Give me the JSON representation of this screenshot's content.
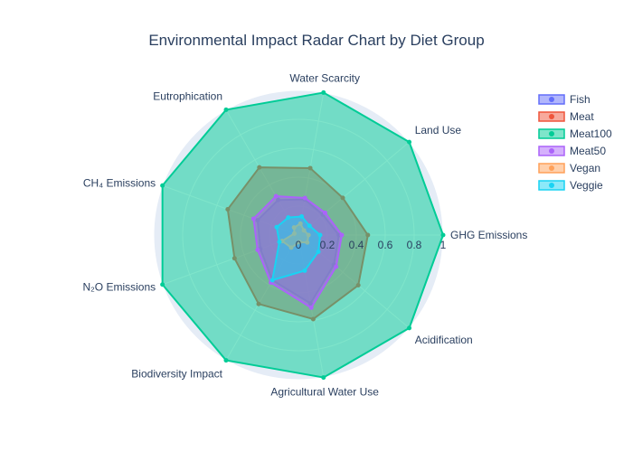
{
  "chart_data": {
    "type": "radar",
    "title": "Environmental Impact Radar Chart by Diet Group",
    "axes": [
      "GHG Emissions",
      "Land Use",
      "Water Scarcity",
      "Eutrophication",
      "CH₄ Emissions",
      "N₂O Emissions",
      "Biodiversity Impact",
      "Agricultural Water Use",
      "Acidification"
    ],
    "radial_range": [
      0,
      1
    ],
    "radial_ticks": [
      "0",
      "0.2",
      "0.4",
      "0.6",
      "0.8",
      "1"
    ],
    "grid": true,
    "legend_position": "top-right",
    "series": [
      {
        "name": "Fish",
        "color": "#636efa",
        "values": [
          0.28,
          0.22,
          0.25,
          0.28,
          0.3,
          0.28,
          0.36,
          0.48,
          0.32
        ]
      },
      {
        "name": "Meat",
        "color": "#ef553b",
        "values": [
          0.48,
          0.4,
          0.47,
          0.54,
          0.52,
          0.47,
          0.55,
          0.59,
          0.54
        ]
      },
      {
        "name": "Meat100",
        "color": "#00cc96",
        "values": [
          1,
          1,
          1,
          1,
          1,
          1,
          1,
          1,
          1
        ]
      },
      {
        "name": "Meat50",
        "color": "#ab63fa",
        "values": [
          0.3,
          0.24,
          0.26,
          0.31,
          0.33,
          0.3,
          0.38,
          0.51,
          0.34
        ]
      },
      {
        "name": "Vegan",
        "color": "#ffa15a",
        "values": [
          0.07,
          0.05,
          0.08,
          0.06,
          0.03,
          0.12,
          0.1,
          0.05,
          0.08
        ]
      },
      {
        "name": "Veggie",
        "color": "#19d3f3",
        "values": [
          0.15,
          0.1,
          0.13,
          0.14,
          0.16,
          0.14,
          0.36,
          0.25,
          0.18
        ]
      }
    ]
  },
  "colors": {
    "polar_bg": "#e5ecf6",
    "grid": "#ffffff",
    "text": "#2a3f5f"
  }
}
